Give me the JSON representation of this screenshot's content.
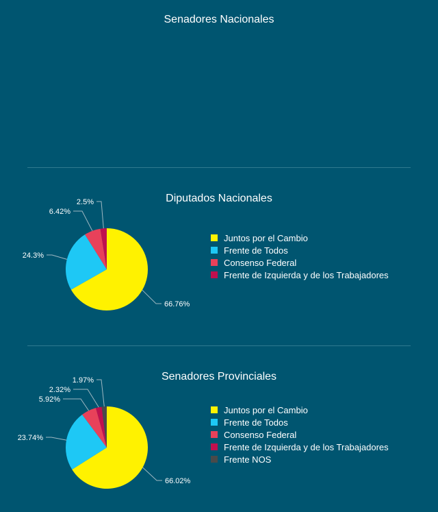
{
  "sections": [
    {
      "title": "Senadores Nacionales"
    },
    {
      "title": "Diputados Nacionales"
    },
    {
      "title": "Senadores Provinciales"
    }
  ],
  "chart_data": [
    {
      "type": "pie",
      "title": "Diputados Nacionales",
      "categories": [
        "Juntos por el Cambio",
        "Frente de Todos",
        "Consenso Federal",
        "Frente de Izquierda y de los Trabajadores"
      ],
      "values": [
        66.76,
        24.3,
        6.42,
        2.5
      ],
      "labels": [
        "66.76%",
        "24.3%",
        "6.42%",
        "2.5%"
      ],
      "colors": [
        "#fff200",
        "#1ec8f5",
        "#e8415a",
        "#c0104e"
      ],
      "legend": "right"
    },
    {
      "type": "pie",
      "title": "Senadores Provinciales",
      "categories": [
        "Juntos por el Cambio",
        "Frente de Todos",
        "Consenso Federal",
        "Frente de Izquierda y de los Trabajadores",
        "Frente NOS"
      ],
      "values": [
        66.02,
        23.74,
        5.92,
        2.32,
        1.97
      ],
      "labels": [
        "66.02%",
        "23.74%",
        "5.92%",
        "2.32%",
        "1.97%"
      ],
      "colors": [
        "#fff200",
        "#1ec8f5",
        "#e8415a",
        "#c0104e",
        "#4a4a4a"
      ],
      "legend": "right"
    }
  ]
}
